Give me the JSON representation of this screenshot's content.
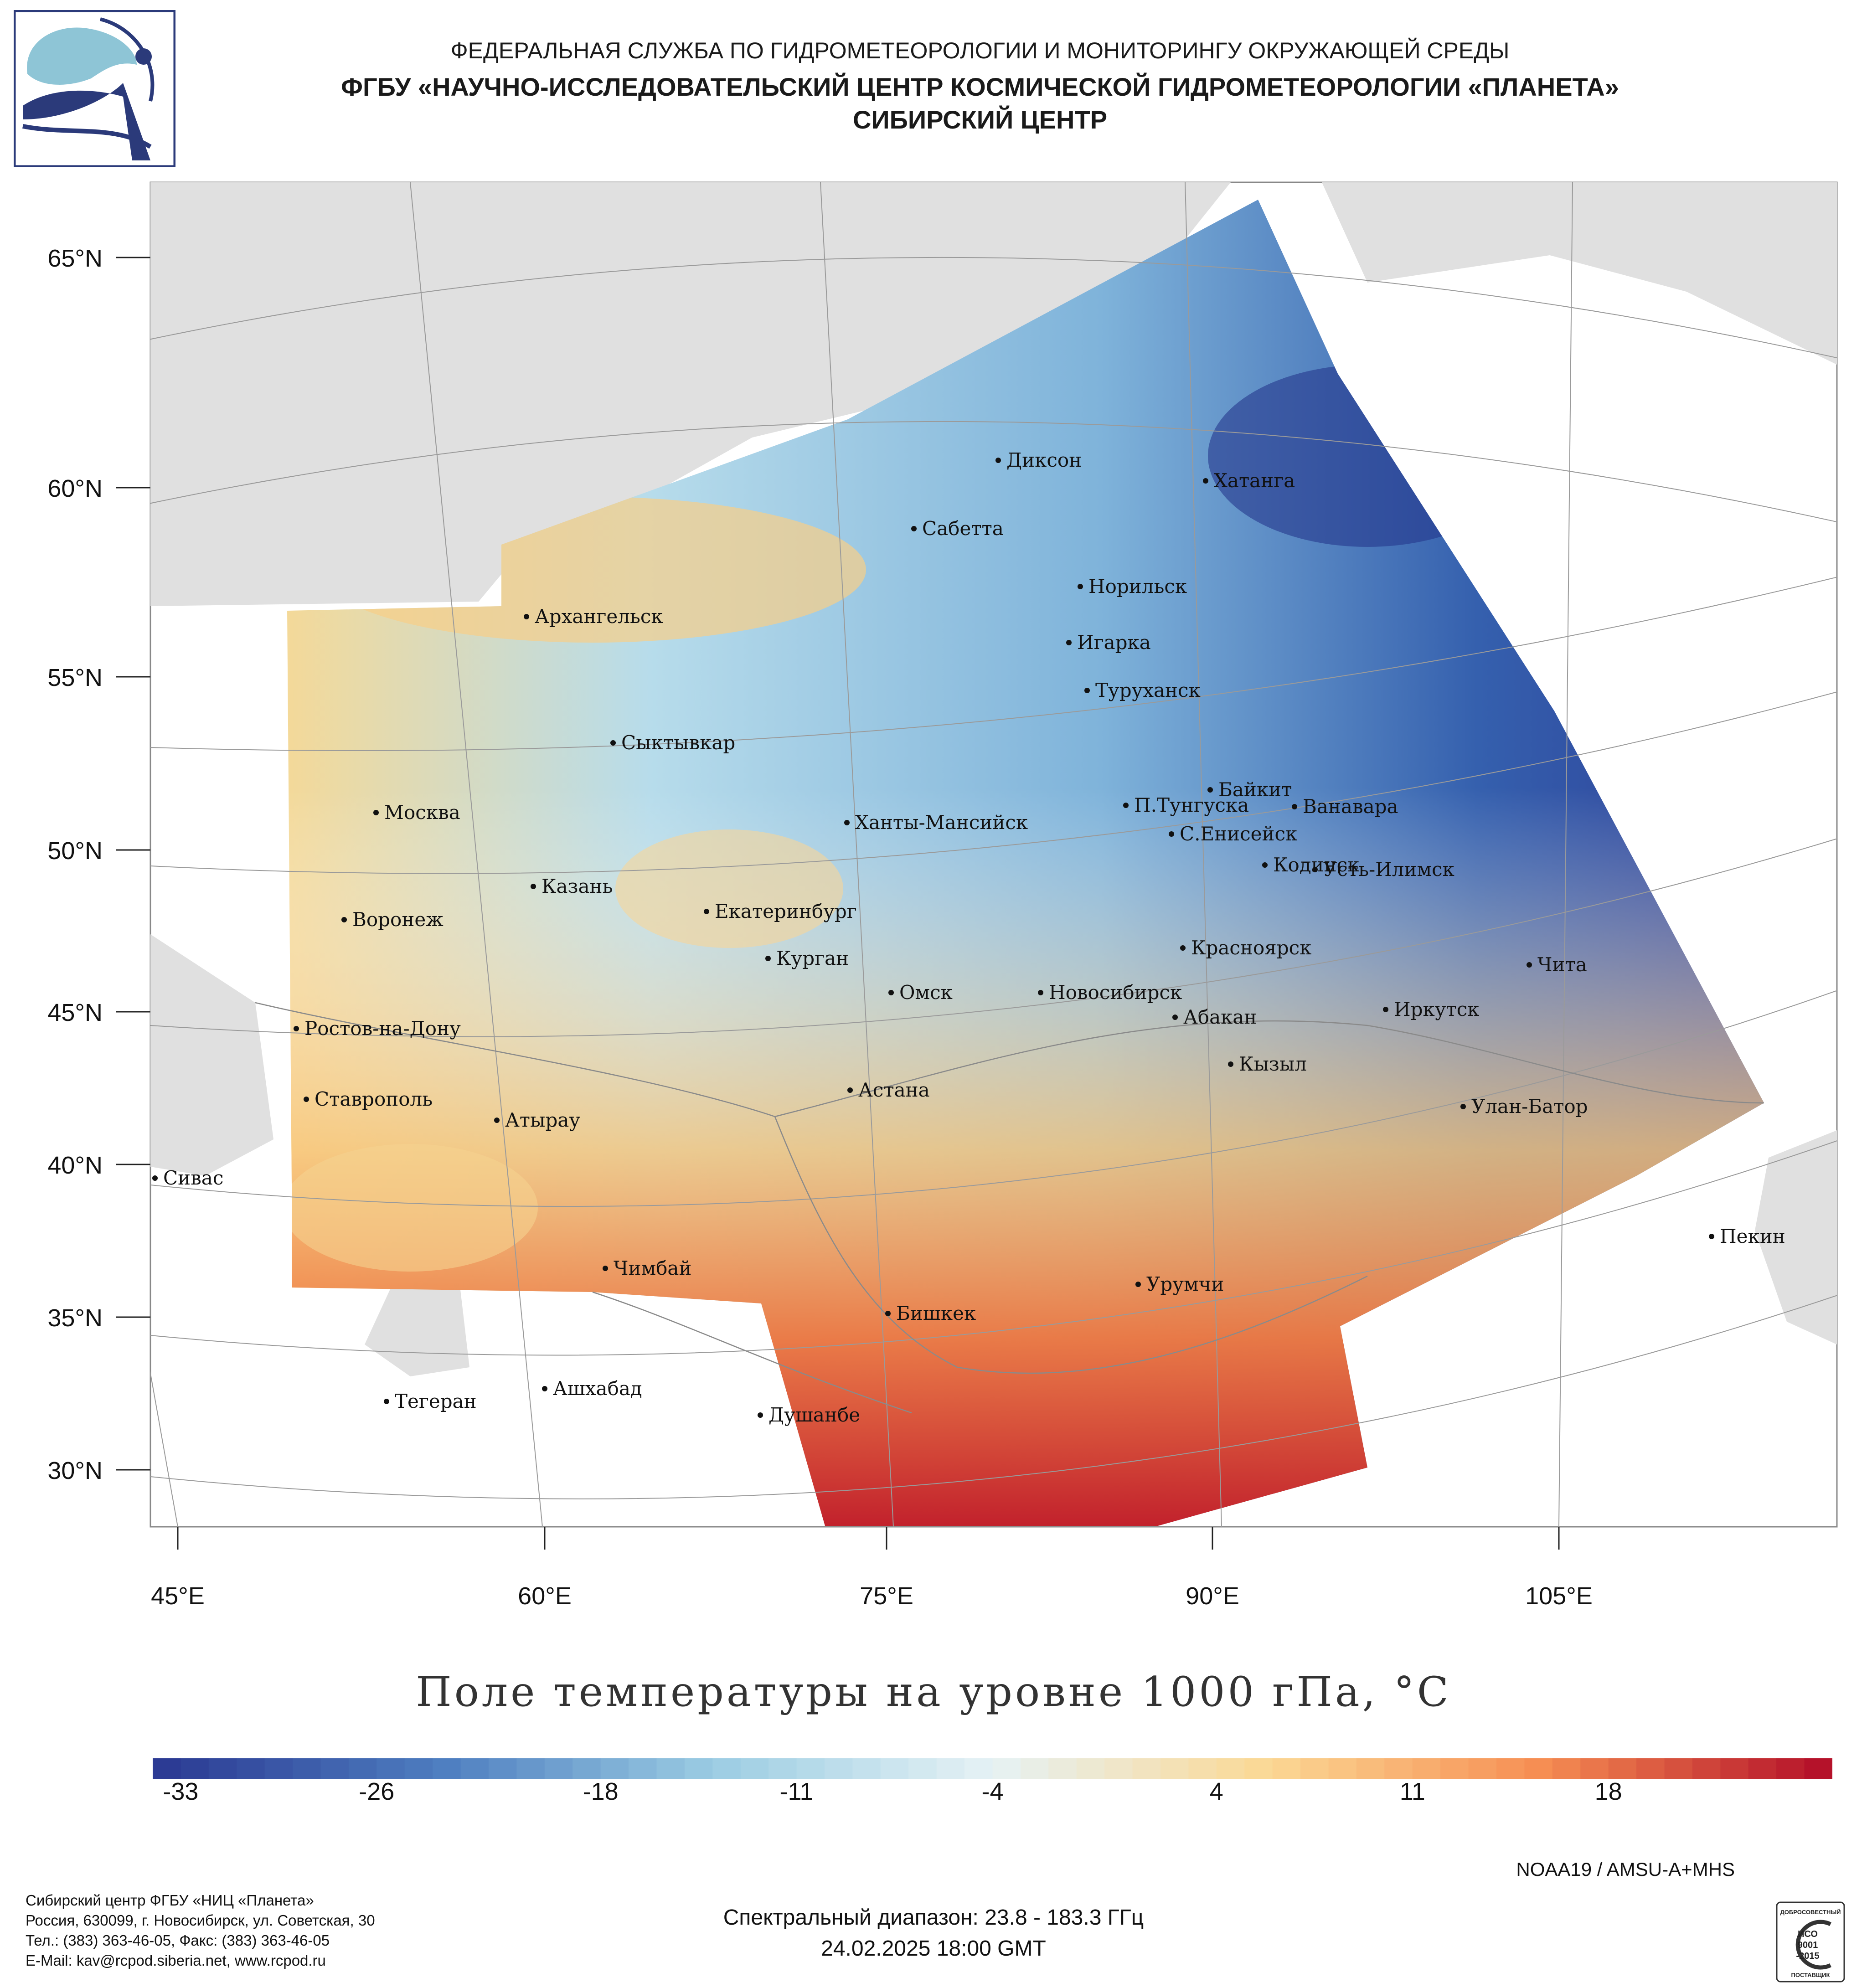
{
  "header": {
    "line1": "ФЕДЕРАЛЬНАЯ СЛУЖБА ПО ГИДРОМЕТЕОРОЛОГИИ И МОНИТОРИНГУ ОКРУЖАЮЩЕЙ СРЕДЫ",
    "line2": "ФГБУ «НАУЧНО-ИССЛЕДОВАТЕЛЬСКИЙ ЦЕНТР КОСМИЧЕСКОЙ ГИДРОМЕТЕОРОЛОГИИ «ПЛАНЕТА»",
    "line3": "СИБИРСКИЙ ЦЕНТР",
    "logo_icon": "planeta-logo-icon"
  },
  "map": {
    "lat_labels": [
      "65°N",
      "60°N",
      "55°N",
      "50°N",
      "45°N",
      "40°N",
      "35°N",
      "30°N"
    ],
    "lon_labels": [
      "45°E",
      "60°E",
      "75°E",
      "90°E",
      "105°E"
    ],
    "cities": [
      "Диксон",
      "Хатанга",
      "Сабетта",
      "Норильск",
      "Игарка",
      "Туруханск",
      "Архангельск",
      "Сыктывкар",
      "Байкит",
      "П.Тунгуска",
      "Ванавара",
      "Москва",
      "Ханты-Мансийск",
      "С.Енисейск",
      "Кодинск",
      "Усть-Илимск",
      "Казань",
      "Воронеж",
      "Екатеринбург",
      "Курган",
      "Красноярск",
      "Чита",
      "Омск",
      "Новосибирск",
      "Иркутск",
      "Ростов-на-Дону",
      "Абакан",
      "Кызыл",
      "Ставрополь",
      "Астана",
      "Улан-Батор",
      "Атырау",
      "Сивас",
      "Пекин",
      "Чимбай",
      "Урумчи",
      "Бишкек",
      "Ашхабад",
      "Тегеран",
      "Душанбе"
    ],
    "colors": {
      "land": "#e0e0e0",
      "water": "#ffffff",
      "border": "#9a9a9a"
    }
  },
  "chart_data": {
    "type": "heatmap",
    "title": "Поле температуры на уровне 1000 гПа, °С",
    "colorbar_ticks": [
      "-33",
      "-26",
      "-18",
      "-11",
      "-4",
      "4",
      "11",
      "18"
    ],
    "colorbar_range": [
      -34,
      26
    ],
    "colors": [
      "#2c3b94",
      "#4e7ec0",
      "#9ccde3",
      "#e6f2f5",
      "#fbd894",
      "#f68d52",
      "#b5122a"
    ]
  },
  "footer": {
    "satellite": "NOAA19 / AMSU-A+MHS",
    "org_lines": [
      "Сибирский центр ФГБУ «НИЦ «Планета»",
      "Россия, 630099, г. Новосибирск, ул. Советская, 30",
      "Тел.: (383) 363-46-05, Факс: (383) 363-46-05",
      "E-Mail: kav@rcpod.siberia.net, www.rcpod.ru"
    ],
    "spectral": "Спектральный диапазон: 23.8 - 183.3 ГГц",
    "datetime": "24.02.2025 18:00 GMT",
    "iso": {
      "top": "ДОБРОСОВЕСТНЫЙ",
      "l1": "ИСО",
      "l2": "9001",
      "l3": "-2015",
      "bottom": "ПОСТАВЩИК",
      "icon": "iso-certificate-icon"
    }
  }
}
